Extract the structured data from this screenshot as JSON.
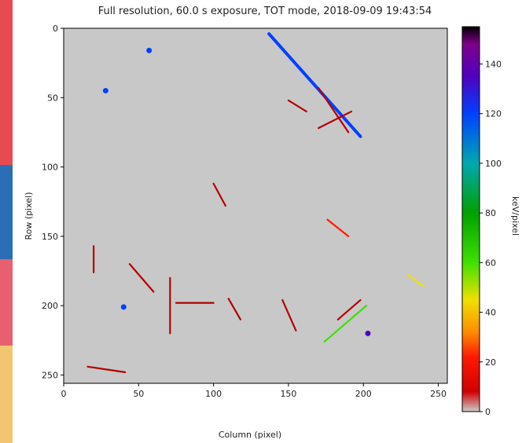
{
  "chart_data": {
    "type": "heatmap",
    "title": "Full resolution, 60.0 s exposure, TOT mode, 2018-09-09 19:43:54",
    "xlabel": "Column (pixel)",
    "ylabel": "Row (pixel)",
    "colorbar_label": "keV/pixel",
    "xlim": [
      0,
      256
    ],
    "ylim": [
      256,
      0
    ],
    "x_ticks": [
      0,
      50,
      100,
      150,
      200,
      250
    ],
    "y_ticks": [
      0,
      50,
      100,
      150,
      200,
      250
    ],
    "colorbar_range": [
      0,
      155
    ],
    "colorbar_ticks": [
      0,
      20,
      40,
      60,
      80,
      100,
      120,
      140
    ],
    "background_color": "#c8c8c8",
    "track_color": "#b40000",
    "colormap": [
      {
        "v": 0,
        "c": "#cccccc"
      },
      {
        "v": 8,
        "c": "#d00000"
      },
      {
        "v": 22,
        "c": "#ff1a00"
      },
      {
        "v": 32,
        "c": "#ff8c00"
      },
      {
        "v": 45,
        "c": "#f0e000"
      },
      {
        "v": 60,
        "c": "#40e000"
      },
      {
        "v": 80,
        "c": "#00a000"
      },
      {
        "v": 100,
        "c": "#00a8b0"
      },
      {
        "v": 120,
        "c": "#0040ff"
      },
      {
        "v": 135,
        "c": "#5000c0"
      },
      {
        "v": 148,
        "c": "#80008a"
      },
      {
        "v": 155,
        "c": "#000000"
      }
    ],
    "tracks": [
      {
        "x1": 137,
        "y1": 4,
        "x2": 198,
        "y2": 78,
        "kev": 130
      },
      {
        "x1": 170,
        "y1": 43,
        "x2": 190,
        "y2": 75,
        "kev": 10
      },
      {
        "x1": 150,
        "y1": 52,
        "x2": 162,
        "y2": 60,
        "kev": 10
      },
      {
        "x1": 170,
        "y1": 72,
        "x2": 192,
        "y2": 60,
        "kev": 10
      },
      {
        "x1": 202,
        "y1": 200,
        "x2": 174,
        "y2": 226,
        "kev": 60
      },
      {
        "x1": 183,
        "y1": 210,
        "x2": 198,
        "y2": 196,
        "kev": 10
      },
      {
        "x1": 16,
        "y1": 244,
        "x2": 41,
        "y2": 248,
        "kev": 10
      },
      {
        "x1": 75,
        "y1": 198,
        "x2": 100,
        "y2": 198,
        "kev": 10
      },
      {
        "x1": 71,
        "y1": 180,
        "x2": 71,
        "y2": 220,
        "kev": 10
      },
      {
        "x1": 44,
        "y1": 170,
        "x2": 60,
        "y2": 190,
        "kev": 10
      },
      {
        "x1": 20,
        "y1": 157,
        "x2": 20,
        "y2": 176,
        "kev": 10
      },
      {
        "x1": 110,
        "y1": 195,
        "x2": 118,
        "y2": 210,
        "kev": 10
      },
      {
        "x1": 146,
        "y1": 196,
        "x2": 155,
        "y2": 218,
        "kev": 10
      },
      {
        "x1": 230,
        "y1": 178,
        "x2": 240,
        "y2": 186,
        "kev": 50
      },
      {
        "x1": 176,
        "y1": 138,
        "x2": 190,
        "y2": 150,
        "kev": 30
      },
      {
        "x1": 100,
        "y1": 112,
        "x2": 108,
        "y2": 128,
        "kev": 10
      }
    ],
    "hotspots": [
      {
        "x": 203,
        "y": 220,
        "kev": 135
      },
      {
        "x": 40,
        "y": 201,
        "kev": 120
      },
      {
        "x": 28,
        "y": 45,
        "kev": 120
      },
      {
        "x": 57,
        "y": 16,
        "kev": 120
      }
    ]
  }
}
